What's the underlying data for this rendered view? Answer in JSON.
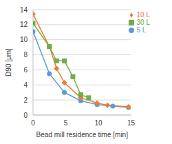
{
  "chart_data": {
    "type": "line",
    "x_label": "Bead mill residence time [min]",
    "y_label": "D90 [μm]",
    "xlim": [
      0,
      15
    ],
    "xticks": [
      0,
      5,
      10,
      15
    ],
    "ylim": [
      0,
      14
    ],
    "yticks": [
      0,
      2,
      4,
      6,
      8,
      10,
      12,
      14
    ],
    "grid": true,
    "legend": "upper right",
    "series": [
      {
        "name": "5 L",
        "color": "#5b9bd5",
        "marker": "circle",
        "x": [
          0,
          2.5,
          4.8,
          7.3,
          9.8,
          12.2,
          14.6
        ],
        "values": [
          11.1,
          5.5,
          3.0,
          1.9,
          1.4,
          1.2,
          1.0
        ]
      },
      {
        "name": "10 L",
        "color": "#ed7d31",
        "marker": "diamond",
        "x": [
          0,
          2.5,
          3.6,
          4.8,
          7.3,
          9.8,
          11.4,
          14.6
        ],
        "values": [
          13.4,
          9.1,
          6.2,
          4.3,
          2.3,
          1.6,
          1.3,
          1.1
        ]
      },
      {
        "name": "30 L",
        "color": "#70ad47",
        "marker": "square",
        "x": [
          0,
          2.5,
          3.6,
          4.8,
          6.1,
          7.3,
          8.5
        ],
        "values": [
          12.2,
          9.1,
          7.2,
          7.2,
          5.1,
          2.7,
          2.3
        ]
      }
    ]
  }
}
